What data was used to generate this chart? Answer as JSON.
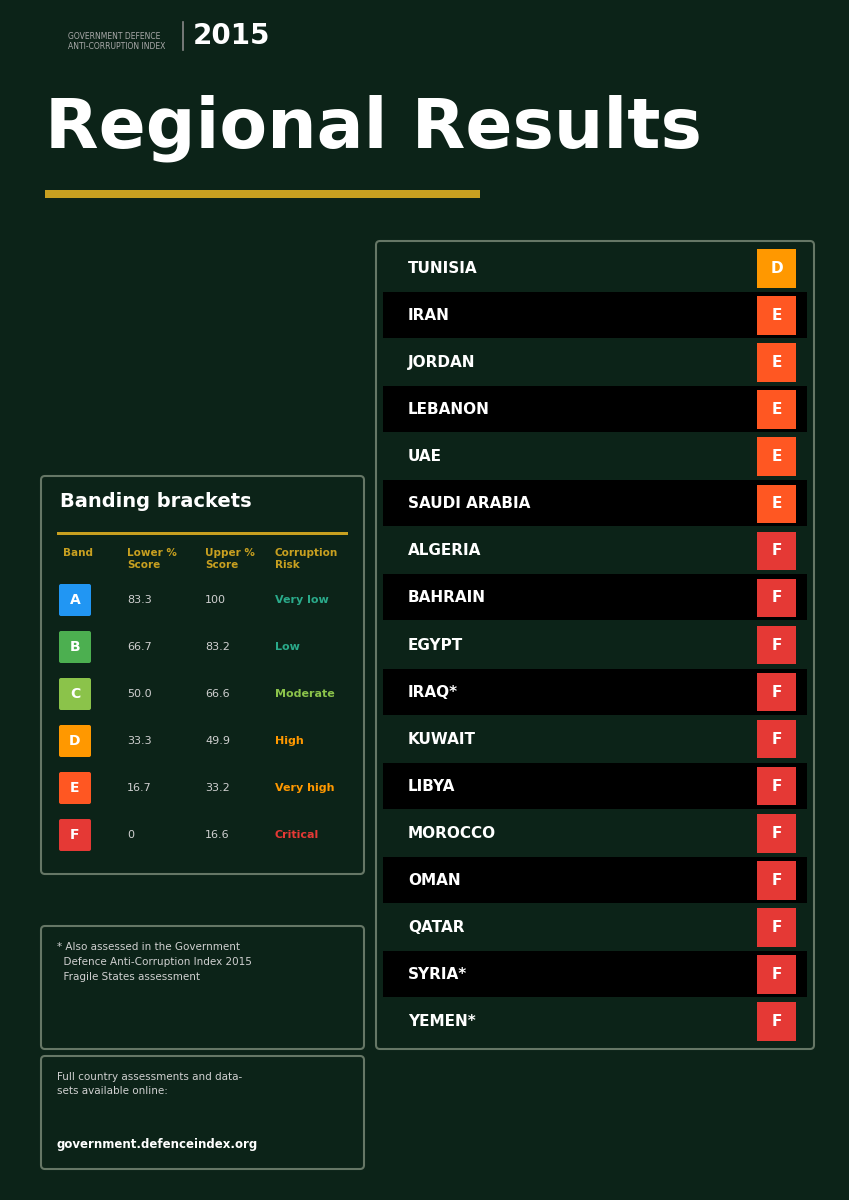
{
  "bg_color": "#0c2318",
  "title": "Regional Results",
  "title_color": "#ffffff",
  "underline_color": "#c8a020",
  "header_line1": "GOVERNMENT DEFENCE",
  "header_line2": "ANTI-CORRUPTION INDEX",
  "year": "2015",
  "banding_title": "Banding brackets",
  "col_headers": [
    "Band",
    "Lower %\nScore",
    "Upper %\nScore",
    "Corruption\nRisk"
  ],
  "col_header_color": "#c8a020",
  "bands": [
    {
      "letter": "A",
      "lower": "83.3",
      "upper": "100",
      "risk": "Very low",
      "box_color": "#2196F3",
      "risk_color": "#2aaa8a"
    },
    {
      "letter": "B",
      "lower": "66.7",
      "upper": "83.2",
      "risk": "Low",
      "box_color": "#4CAF50",
      "risk_color": "#2aaa8a"
    },
    {
      "letter": "C",
      "lower": "50.0",
      "upper": "66.6",
      "risk": "Moderate",
      "box_color": "#8BC34A",
      "risk_color": "#8BC34A"
    },
    {
      "letter": "D",
      "lower": "33.3",
      "upper": "49.9",
      "risk": "High",
      "box_color": "#FF9800",
      "risk_color": "#FF9800"
    },
    {
      "letter": "E",
      "lower": "16.7",
      "upper": "33.2",
      "risk": "Very high",
      "box_color": "#FF5722",
      "risk_color": "#FF9800"
    },
    {
      "letter": "F",
      "lower": "0",
      "upper": "16.6",
      "risk": "Critical",
      "box_color": "#e53935",
      "risk_color": "#e53935"
    }
  ],
  "countries": [
    {
      "name": "TUNISIA",
      "band": "D",
      "band_color": "#FF9800",
      "dark_row": false
    },
    {
      "name": "IRAN",
      "band": "E",
      "band_color": "#FF5722",
      "dark_row": true
    },
    {
      "name": "JORDAN",
      "band": "E",
      "band_color": "#FF5722",
      "dark_row": false
    },
    {
      "name": "LEBANON",
      "band": "E",
      "band_color": "#FF5722",
      "dark_row": true
    },
    {
      "name": "UAE",
      "band": "E",
      "band_color": "#FF5722",
      "dark_row": false
    },
    {
      "name": "SAUDI ARABIA",
      "band": "E",
      "band_color": "#FF5722",
      "dark_row": true
    },
    {
      "name": "ALGERIA",
      "band": "F",
      "band_color": "#e53935",
      "dark_row": false
    },
    {
      "name": "BAHRAIN",
      "band": "F",
      "band_color": "#e53935",
      "dark_row": true
    },
    {
      "name": "EGYPT",
      "band": "F",
      "band_color": "#e53935",
      "dark_row": false
    },
    {
      "name": "IRAQ*",
      "band": "F",
      "band_color": "#e53935",
      "dark_row": true
    },
    {
      "name": "KUWAIT",
      "band": "F",
      "band_color": "#e53935",
      "dark_row": false
    },
    {
      "name": "LIBYA",
      "band": "F",
      "band_color": "#e53935",
      "dark_row": true
    },
    {
      "name": "MOROCCO",
      "band": "F",
      "band_color": "#e53935",
      "dark_row": false
    },
    {
      "name": "OMAN",
      "band": "F",
      "band_color": "#e53935",
      "dark_row": true
    },
    {
      "name": "QATAR",
      "band": "F",
      "band_color": "#e53935",
      "dark_row": false
    },
    {
      "name": "SYRIA*",
      "band": "F",
      "band_color": "#e53935",
      "dark_row": true
    },
    {
      "name": "YEMEN*",
      "band": "F",
      "band_color": "#e53935",
      "dark_row": false
    }
  ],
  "footnote1": "* Also assessed in the Government",
  "footnote2": "  Defence Anti-Corruption Index 2015",
  "footnote3": "  Fragile States assessment",
  "website_label": "Full country assessments and data-\nsets available online:",
  "website": "government.defenceindex.org",
  "text_color": "#ffffff",
  "data_text_color": "#d0d0d0",
  "edge_color": "#667766"
}
